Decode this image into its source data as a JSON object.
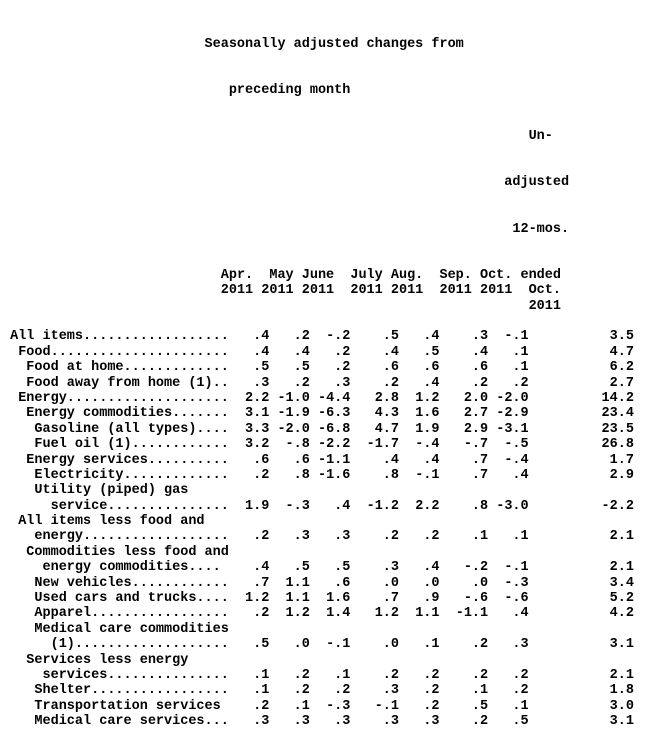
{
  "table": {
    "title_lines": [
      "Seasonally adjusted changes from",
      "preceding month"
    ],
    "last_column_header": [
      "Un-",
      "adjusted",
      "12-mos.",
      "ended",
      "Oct.",
      "2011"
    ],
    "months": [
      "Apr.",
      "May",
      "June",
      "July",
      "Aug.",
      "Sep.",
      "Oct."
    ],
    "years": [
      "2011",
      "2011",
      "2011",
      "2011",
      "2011",
      "2011",
      "2011"
    ],
    "rows": [
      {
        "label": " All items..................",
        "values": [
          ".4",
          ".2",
          "-.2",
          ".5",
          ".4",
          ".3",
          "-.1",
          "3.5"
        ]
      },
      {
        "label": "  Food......................",
        "values": [
          ".4",
          ".4",
          ".2",
          ".4",
          ".5",
          ".4",
          ".1",
          "4.7"
        ]
      },
      {
        "label": "   Food at home.............",
        "values": [
          ".5",
          ".5",
          ".2",
          ".6",
          ".6",
          ".6",
          ".1",
          "6.2"
        ]
      },
      {
        "label": "   Food away from home (1)..",
        "values": [
          ".3",
          ".2",
          ".3",
          ".2",
          ".4",
          ".2",
          ".2",
          "2.7"
        ]
      },
      {
        "label": "  Energy....................",
        "values": [
          "2.2",
          "-1.0",
          "-4.4",
          "2.8",
          "1.2",
          "2.0",
          "-2.0",
          "14.2"
        ]
      },
      {
        "label": "   Energy commodities.......",
        "values": [
          "3.1",
          "-1.9",
          "-6.3",
          "4.3",
          "1.6",
          "2.7",
          "-2.9",
          "23.4"
        ]
      },
      {
        "label": "    Gasoline (all types)....",
        "values": [
          "3.3",
          "-2.0",
          "-6.8",
          "4.7",
          "1.9",
          "2.9",
          "-3.1",
          "23.5"
        ]
      },
      {
        "label": "    Fuel oil (1)............",
        "values": [
          "3.2",
          "-.8",
          "-2.2",
          "-1.7",
          "-.4",
          "-.7",
          "-.5",
          "26.8"
        ]
      },
      {
        "label": "   Energy services..........",
        "values": [
          ".6",
          ".6",
          "-1.1",
          ".4",
          ".4",
          ".7",
          "-.4",
          "1.7"
        ]
      },
      {
        "label": "    Electricity.............",
        "values": [
          ".2",
          ".8",
          "-1.6",
          ".8",
          "-.1",
          ".7",
          ".4",
          "2.9"
        ]
      },
      {
        "pre": "    Utility (piped) gas",
        "label": "      service...............",
        "values": [
          "1.9",
          "-.3",
          ".4",
          "-1.2",
          "2.2",
          ".8",
          "-3.0",
          "-2.2"
        ]
      },
      {
        "pre": "  All items less food and",
        "label": "    energy..................",
        "values": [
          ".2",
          ".3",
          ".3",
          ".2",
          ".2",
          ".1",
          ".1",
          "2.1"
        ]
      },
      {
        "pre": "   Commodities less food and",
        "label": "     energy commodities....",
        "values": [
          ".4",
          ".5",
          ".5",
          ".3",
          ".4",
          "-.2",
          "-.1",
          "2.1"
        ]
      },
      {
        "label": "    New vehicles............",
        "values": [
          ".7",
          "1.1",
          ".6",
          ".0",
          ".0",
          ".0",
          "-.3",
          "3.4"
        ]
      },
      {
        "label": "    Used cars and trucks....",
        "values": [
          "1.2",
          "1.1",
          "1.6",
          ".7",
          ".9",
          "-.6",
          "-.6",
          "5.2"
        ]
      },
      {
        "label": "    Apparel.................",
        "values": [
          ".2",
          "1.2",
          "1.4",
          "1.2",
          "1.1",
          "-1.1",
          ".4",
          "4.2"
        ]
      },
      {
        "pre": "    Medical care commodities",
        "label": "      (1)...................",
        "values": [
          ".5",
          ".0",
          "-.1",
          ".0",
          ".1",
          ".2",
          ".3",
          "3.1"
        ]
      },
      {
        "pre": "   Services less energy",
        "label": "     services...............",
        "values": [
          ".1",
          ".2",
          ".1",
          ".2",
          ".2",
          ".2",
          ".2",
          "2.1"
        ]
      },
      {
        "label": "    Shelter.................",
        "values": [
          ".1",
          ".2",
          ".2",
          ".3",
          ".2",
          ".1",
          ".2",
          "1.8"
        ]
      },
      {
        "label": "    Transportation services",
        "values": [
          ".2",
          ".1",
          "-.3",
          "-.1",
          ".2",
          ".5",
          ".1",
          "3.0"
        ]
      },
      {
        "label": "    Medical care services...",
        "values": [
          ".3",
          ".3",
          ".3",
          ".3",
          ".3",
          ".2",
          ".5",
          "3.1"
        ]
      }
    ]
  }
}
